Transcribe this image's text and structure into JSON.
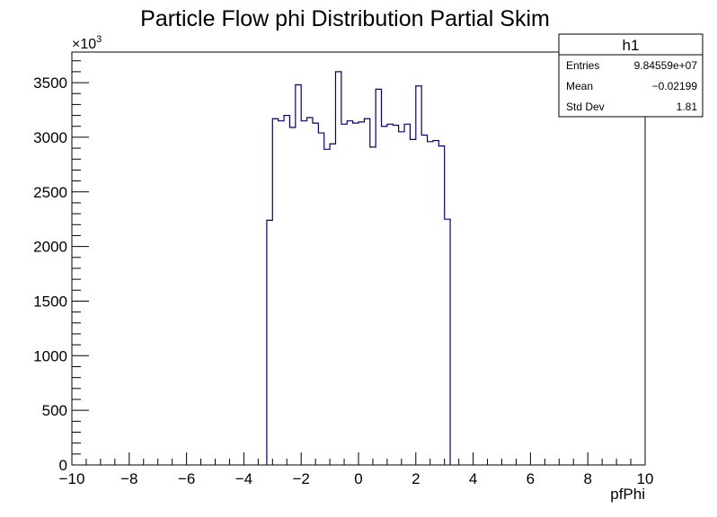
{
  "chart_data": {
    "type": "histogram",
    "title": "Particle Flow phi Distribution Partial Skim",
    "xlabel": "pfPhi",
    "ylabel": "",
    "y_multiplier_label": "×10",
    "y_multiplier_exponent": "3",
    "xlim": [
      -10,
      10
    ],
    "ylim": [
      0,
      3780
    ],
    "x_ticks": [
      -10,
      -8,
      -6,
      -4,
      -2,
      0,
      2,
      4,
      6,
      8,
      10
    ],
    "x_tick_labels": [
      "−10",
      "−8",
      "−6",
      "−4",
      "−2",
      "0",
      "2",
      "4",
      "6",
      "8",
      "10"
    ],
    "y_ticks": [
      0,
      500,
      1000,
      1500,
      2000,
      2500,
      3000,
      3500
    ],
    "y_tick_labels": [
      "0",
      "500",
      "1000",
      "1500",
      "2000",
      "2500",
      "3000",
      "3500"
    ],
    "bin_width": 0.2,
    "bin_start": -3.2,
    "bin_values": [
      2240,
      3170,
      3150,
      3200,
      3090,
      3480,
      3150,
      3180,
      3130,
      3040,
      2890,
      2940,
      3600,
      3120,
      3150,
      3130,
      3140,
      3170,
      2910,
      3440,
      3100,
      3120,
      3110,
      3050,
      3120,
      2980,
      3470,
      3020,
      2960,
      2970,
      2920,
      2250
    ],
    "line_color": "#00007f",
    "stats_box": {
      "name": "h1",
      "rows": [
        {
          "label": "Entries",
          "value": "9.84559e+07"
        },
        {
          "label": "Mean",
          "value": "−0.02199"
        },
        {
          "label": "Std Dev",
          "value": "1.81"
        }
      ]
    }
  }
}
